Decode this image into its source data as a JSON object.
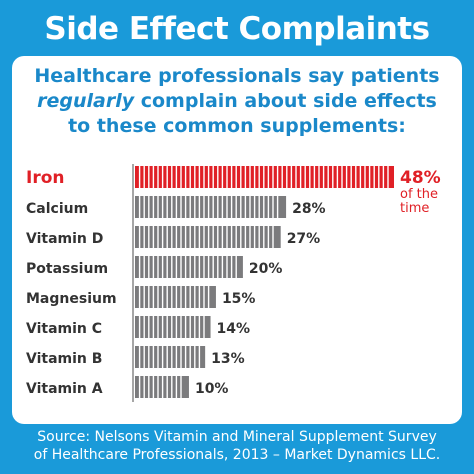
{
  "title": "Side Effect Complaints",
  "subtitle": {
    "line1": "Healthcare professionals say patients",
    "line2_emph": "regularly",
    "line2_rest": " complain about side effects",
    "line3": "to these common supplements:"
  },
  "source": {
    "line1": "Source: Nelsons Vitamin and Mineral Supplement Survey",
    "line2": "of Healthcare Professionals, 2013 – Market Dynamics LLC."
  },
  "colors": {
    "background": "#1a9ad9",
    "highlight": "#e02026",
    "bar": "#7b7b7d",
    "label": "#333333",
    "subtitle": "#1a88c9"
  },
  "chart_data": {
    "type": "bar",
    "orientation": "horizontal",
    "categories": [
      "Iron",
      "Calcium",
      "Vitamin D",
      "Potassium",
      "Magnesium",
      "Vitamin C",
      "Vitamin B",
      "Vitamin A"
    ],
    "values": [
      48,
      28,
      27,
      20,
      15,
      14,
      13,
      10
    ],
    "value_labels": [
      "48%",
      "28%",
      "27%",
      "20%",
      "15%",
      "14%",
      "13%",
      "10%"
    ],
    "highlight_index": 0,
    "highlight_note": [
      "of the",
      "time"
    ],
    "unit": "%",
    "xlim": [
      0,
      48
    ],
    "grid": false
  }
}
